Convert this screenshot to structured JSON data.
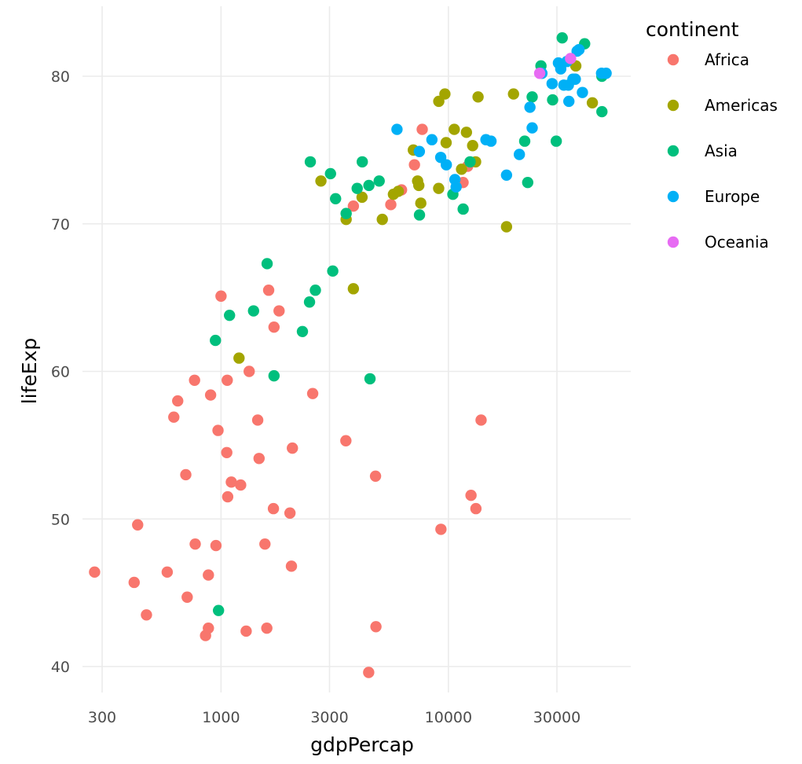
{
  "chart_data": {
    "type": "scatter",
    "title": "",
    "xlabel": "gdpPercap",
    "ylabel": "lifeExp",
    "x_scale": "log10",
    "xlim": [
      185,
      64000
    ],
    "ylim": [
      37.5,
      85
    ],
    "x_ticks": [
      300,
      1000,
      3000,
      10000,
      30000
    ],
    "x_tick_labels": [
      "300",
      "1000",
      "3000",
      "10000",
      "30000"
    ],
    "y_ticks": [
      40,
      50,
      60,
      70,
      80
    ],
    "y_tick_labels": [
      "40",
      "50",
      "60",
      "70",
      "80"
    ],
    "grid": true,
    "legend": {
      "title": "continent",
      "position": "right"
    },
    "series": [
      {
        "name": "Africa",
        "color": "#F8766D",
        "points": [
          [
            278,
            46.4
          ],
          [
            415,
            45.7
          ],
          [
            430,
            49.6
          ],
          [
            470,
            43.5
          ],
          [
            580,
            46.4
          ],
          [
            620,
            56.9
          ],
          [
            645,
            58.0
          ],
          [
            700,
            53.0
          ],
          [
            710,
            44.7
          ],
          [
            765,
            59.4
          ],
          [
            770,
            48.3
          ],
          [
            855,
            42.1
          ],
          [
            880,
            42.6
          ],
          [
            880,
            46.2
          ],
          [
            900,
            58.4
          ],
          [
            950,
            48.2
          ],
          [
            970,
            56.0
          ],
          [
            1000,
            65.1
          ],
          [
            1060,
            54.5
          ],
          [
            1065,
            59.4
          ],
          [
            1070,
            51.5
          ],
          [
            1110,
            52.5
          ],
          [
            1220,
            52.3
          ],
          [
            1290,
            42.4
          ],
          [
            1330,
            60.0
          ],
          [
            1450,
            56.7
          ],
          [
            1470,
            54.1
          ],
          [
            1560,
            48.3
          ],
          [
            1590,
            42.6
          ],
          [
            1620,
            65.5
          ],
          [
            1700,
            50.7
          ],
          [
            1710,
            63.0
          ],
          [
            1800,
            64.1
          ],
          [
            2010,
            50.4
          ],
          [
            2040,
            46.8
          ],
          [
            2060,
            54.8
          ],
          [
            2530,
            58.5
          ],
          [
            3540,
            55.3
          ],
          [
            3820,
            71.2
          ],
          [
            4460,
            39.6
          ],
          [
            4780,
            52.9
          ],
          [
            4800,
            42.7
          ],
          [
            5580,
            71.3
          ],
          [
            6220,
            72.3
          ],
          [
            7090,
            74.0
          ],
          [
            7670,
            76.4
          ],
          [
            9270,
            49.3
          ],
          [
            11600,
            72.8
          ],
          [
            12150,
            73.9
          ],
          [
            12570,
            51.6
          ],
          [
            13210,
            50.7
          ],
          [
            13920,
            56.7
          ]
        ]
      },
      {
        "name": "Americas",
        "color": "#A3A500",
        "points": [
          [
            1200,
            60.9
          ],
          [
            2750,
            72.9
          ],
          [
            3550,
            70.3
          ],
          [
            3820,
            65.6
          ],
          [
            4170,
            71.8
          ],
          [
            5120,
            70.3
          ],
          [
            5730,
            72.0
          ],
          [
            6020,
            72.2
          ],
          [
            7010,
            75.0
          ],
          [
            7320,
            72.9
          ],
          [
            7410,
            72.6
          ],
          [
            7560,
            71.4
          ],
          [
            9060,
            72.4
          ],
          [
            9070,
            78.3
          ],
          [
            9650,
            78.8
          ],
          [
            9770,
            75.5
          ],
          [
            10610,
            76.4
          ],
          [
            11420,
            73.7
          ],
          [
            12000,
            76.2
          ],
          [
            12780,
            75.3
          ],
          [
            13170,
            74.2
          ],
          [
            13500,
            78.6
          ],
          [
            18010,
            69.8
          ],
          [
            19330,
            78.8
          ],
          [
            36320,
            80.7
          ],
          [
            42950,
            78.2
          ]
        ]
      },
      {
        "name": "Asia",
        "color": "#00BF7D",
        "points": [
          [
            975,
            43.8
          ],
          [
            945,
            62.1
          ],
          [
            1090,
            63.8
          ],
          [
            1390,
            64.1
          ],
          [
            1595,
            67.3
          ],
          [
            1710,
            59.7
          ],
          [
            2280,
            62.7
          ],
          [
            2450,
            64.7
          ],
          [
            2470,
            74.2
          ],
          [
            2600,
            65.5
          ],
          [
            3030,
            73.4
          ],
          [
            3100,
            66.8
          ],
          [
            3190,
            71.7
          ],
          [
            3550,
            70.7
          ],
          [
            3970,
            72.4
          ],
          [
            4180,
            74.2
          ],
          [
            4470,
            72.6
          ],
          [
            4520,
            59.5
          ],
          [
            4960,
            72.9
          ],
          [
            7460,
            70.6
          ],
          [
            10460,
            72.0
          ],
          [
            11610,
            71.0
          ],
          [
            12450,
            74.2
          ],
          [
            21650,
            75.6
          ],
          [
            22320,
            72.8
          ],
          [
            23350,
            78.6
          ],
          [
            25520,
            80.7
          ],
          [
            28720,
            78.4
          ],
          [
            31650,
            82.6
          ],
          [
            39720,
            82.2
          ],
          [
            47300,
            80.0
          ],
          [
            47310,
            77.6
          ],
          [
            29800,
            75.6
          ]
        ]
      },
      {
        "name": "Europe",
        "color": "#00B0F6",
        "points": [
          [
            5940,
            76.4
          ],
          [
            7450,
            74.9
          ],
          [
            8460,
            75.7
          ],
          [
            9250,
            74.5
          ],
          [
            9790,
            74.0
          ],
          [
            10680,
            73.0
          ],
          [
            10810,
            72.5
          ],
          [
            14620,
            75.7
          ],
          [
            15390,
            75.6
          ],
          [
            18010,
            73.3
          ],
          [
            20510,
            74.7
          ],
          [
            22830,
            77.9
          ],
          [
            23350,
            76.5
          ],
          [
            25770,
            80.2
          ],
          [
            28570,
            79.5
          ],
          [
            30460,
            80.9
          ],
          [
            30900,
            80.8
          ],
          [
            31190,
            80.5
          ],
          [
            32170,
            79.4
          ],
          [
            33690,
            79.4
          ],
          [
            33860,
            78.3
          ],
          [
            33210,
            81.0
          ],
          [
            35280,
            79.8
          ],
          [
            36130,
            79.8
          ],
          [
            36800,
            81.7
          ],
          [
            37510,
            81.8
          ],
          [
            38840,
            78.9
          ],
          [
            47140,
            80.2
          ],
          [
            49360,
            80.2
          ]
        ]
      },
      {
        "name": "Oceania",
        "color": "#E76BF3",
        "points": [
          [
            25190,
            80.2
          ],
          [
            34440,
            81.2
          ]
        ]
      }
    ]
  }
}
